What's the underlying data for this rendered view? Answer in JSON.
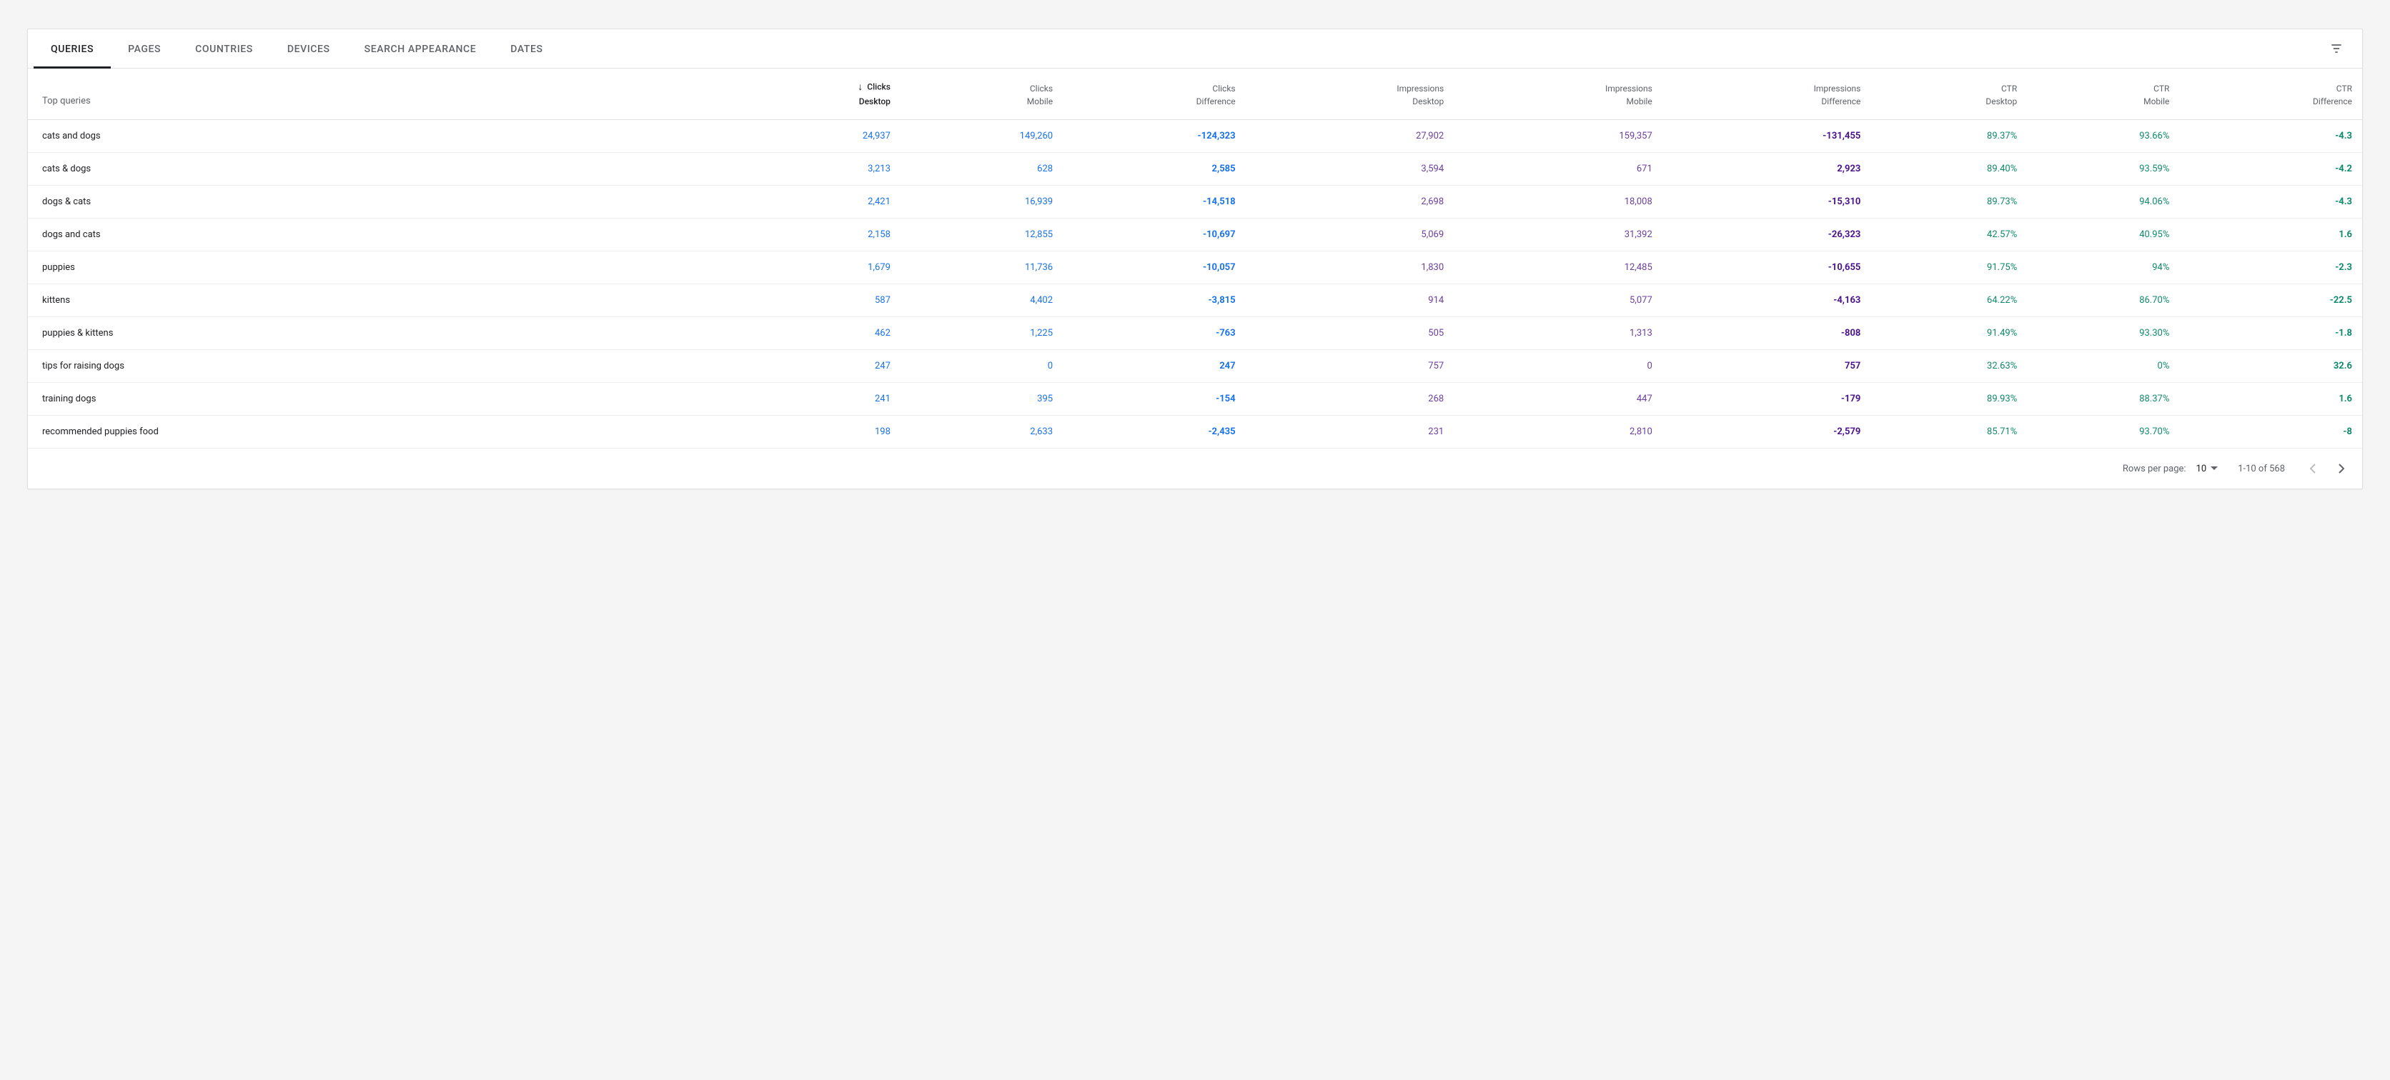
{
  "tabs": [
    {
      "label": "QUERIES",
      "active": true
    },
    {
      "label": "PAGES",
      "active": false
    },
    {
      "label": "COUNTRIES",
      "active": false
    },
    {
      "label": "DEVICES",
      "active": false
    },
    {
      "label": "SEARCH APPEARANCE",
      "active": false
    },
    {
      "label": "DATES",
      "active": false
    }
  ],
  "columns": {
    "query_header": "Top queries",
    "list": [
      {
        "l1": "Clicks",
        "l2": "Desktop",
        "sorted": true,
        "group": "clicks"
      },
      {
        "l1": "Clicks",
        "l2": "Mobile",
        "group": "clicks"
      },
      {
        "l1": "Clicks",
        "l2": "Difference",
        "group": "clicks",
        "diff": true
      },
      {
        "l1": "Impressions",
        "l2": "Desktop",
        "group": "impr"
      },
      {
        "l1": "Impressions",
        "l2": "Mobile",
        "group": "impr"
      },
      {
        "l1": "Impressions",
        "l2": "Difference",
        "group": "impr",
        "diff": true
      },
      {
        "l1": "CTR",
        "l2": "Desktop",
        "group": "ctr"
      },
      {
        "l1": "CTR",
        "l2": "Mobile",
        "group": "ctr"
      },
      {
        "l1": "CTR",
        "l2": "Difference",
        "group": "ctr",
        "diff": true
      }
    ]
  },
  "rows": [
    {
      "query": "cats and dogs",
      "cells": [
        "24,937",
        "149,260",
        "-124,323",
        "27,902",
        "159,357",
        "-131,455",
        "89.37%",
        "93.66%",
        "-4.3"
      ]
    },
    {
      "query": "cats & dogs",
      "cells": [
        "3,213",
        "628",
        "2,585",
        "3,594",
        "671",
        "2,923",
        "89.40%",
        "93.59%",
        "-4.2"
      ]
    },
    {
      "query": "dogs & cats",
      "cells": [
        "2,421",
        "16,939",
        "-14,518",
        "2,698",
        "18,008",
        "-15,310",
        "89.73%",
        "94.06%",
        "-4.3"
      ]
    },
    {
      "query": "dogs and cats",
      "cells": [
        "2,158",
        "12,855",
        "-10,697",
        "5,069",
        "31,392",
        "-26,323",
        "42.57%",
        "40.95%",
        "1.6"
      ]
    },
    {
      "query": "puppies",
      "cells": [
        "1,679",
        "11,736",
        "-10,057",
        "1,830",
        "12,485",
        "-10,655",
        "91.75%",
        "94%",
        "-2.3"
      ]
    },
    {
      "query": "kittens",
      "cells": [
        "587",
        "4,402",
        "-3,815",
        "914",
        "5,077",
        "-4,163",
        "64.22%",
        "86.70%",
        "-22.5"
      ]
    },
    {
      "query": "puppies & kittens",
      "cells": [
        "462",
        "1,225",
        "-763",
        "505",
        "1,313",
        "-808",
        "91.49%",
        "93.30%",
        "-1.8"
      ]
    },
    {
      "query": "tips for raising dogs",
      "cells": [
        "247",
        "0",
        "247",
        "757",
        "0",
        "757",
        "32.63%",
        "0%",
        "32.6"
      ]
    },
    {
      "query": "training dogs",
      "cells": [
        "241",
        "395",
        "-154",
        "268",
        "447",
        "-179",
        "89.93%",
        "88.37%",
        "1.6"
      ]
    },
    {
      "query": "recommended puppies food",
      "cells": [
        "198",
        "2,633",
        "-2,435",
        "231",
        "2,810",
        "-2,579",
        "85.71%",
        "93.70%",
        "-8"
      ]
    }
  ],
  "pagination": {
    "rows_per_page_label": "Rows per page:",
    "rows_per_page_value": "10",
    "range_text": "1-10 of 568",
    "prev_disabled": true,
    "next_disabled": false
  },
  "colors": {
    "clicks": "#1a73e8",
    "impressions": "#6b3fa0",
    "impressions_diff": "#4a148c",
    "ctr": "#0f8a6b",
    "text": "#202124",
    "muted": "#5f6368",
    "border": "#e0e0e0",
    "background": "#f5f5f5"
  }
}
